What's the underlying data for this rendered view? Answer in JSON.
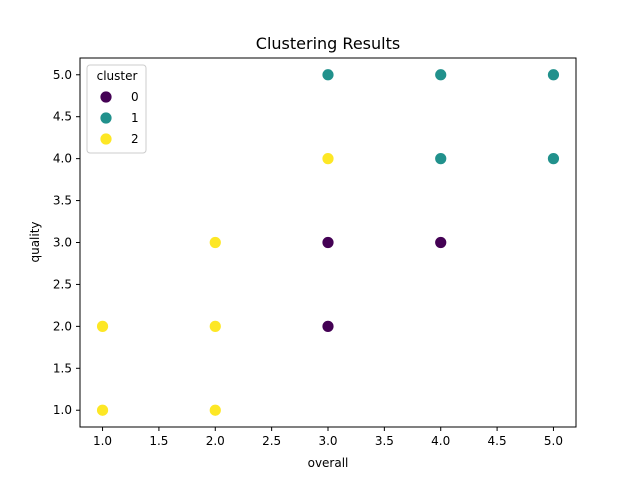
{
  "chart_data": {
    "type": "scatter",
    "title": "Clustering Results",
    "xlabel": "overall",
    "ylabel": "quality",
    "xlim": [
      0.8,
      5.2
    ],
    "ylim": [
      0.8,
      5.2
    ],
    "xticks": [
      1.0,
      1.5,
      2.0,
      2.5,
      3.0,
      3.5,
      4.0,
      4.5,
      5.0
    ],
    "xtick_labels": [
      "1.0",
      "1.5",
      "2.0",
      "2.5",
      "3.0",
      "3.5",
      "4.0",
      "4.5",
      "5.0"
    ],
    "yticks": [
      1.0,
      1.5,
      2.0,
      2.5,
      3.0,
      3.5,
      4.0,
      4.5,
      5.0
    ],
    "ytick_labels": [
      "1.0",
      "1.5",
      "2.0",
      "2.5",
      "3.0",
      "3.5",
      "4.0",
      "4.5",
      "5.0"
    ],
    "grid": false,
    "legend": {
      "title": "cluster",
      "placement": "upper-left"
    },
    "series": [
      {
        "name": "0",
        "color": "#440154",
        "points": [
          {
            "x": 3,
            "y": 3
          },
          {
            "x": 4,
            "y": 3
          },
          {
            "x": 3,
            "y": 2
          }
        ]
      },
      {
        "name": "1",
        "color": "#21918c",
        "points": [
          {
            "x": 3,
            "y": 5
          },
          {
            "x": 4,
            "y": 5
          },
          {
            "x": 5,
            "y": 5
          },
          {
            "x": 4,
            "y": 4
          },
          {
            "x": 5,
            "y": 4
          }
        ]
      },
      {
        "name": "2",
        "color": "#fde725",
        "points": [
          {
            "x": 3,
            "y": 4
          },
          {
            "x": 2,
            "y": 3
          },
          {
            "x": 1,
            "y": 2
          },
          {
            "x": 2,
            "y": 2
          },
          {
            "x": 1,
            "y": 1
          },
          {
            "x": 2,
            "y": 1
          }
        ]
      }
    ]
  }
}
